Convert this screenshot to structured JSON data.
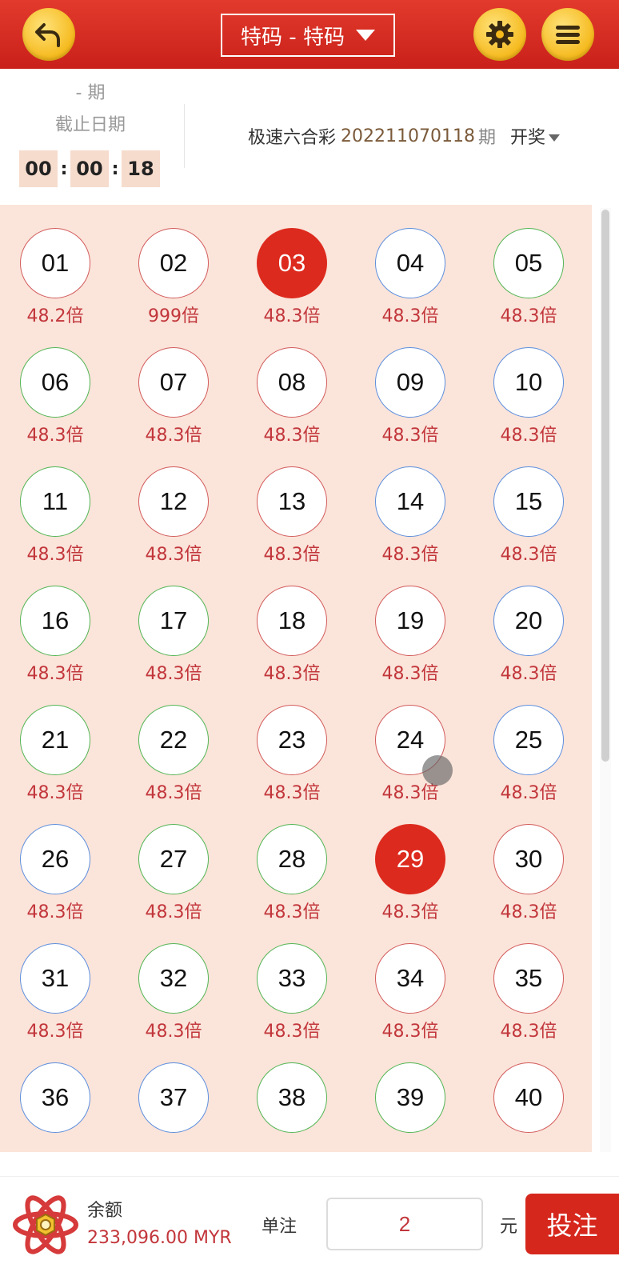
{
  "header": {
    "title": "特码 - 特码",
    "back_icon": "back-arrow-icon",
    "settings_icon": "gear-icon",
    "menu_icon": "menu-icon"
  },
  "info": {
    "period": "- 期",
    "cutoff_label": "截止日期",
    "countdown": {
      "hours": "00",
      "minutes": "00",
      "seconds": "18"
    },
    "lottery_name": "极速六合彩",
    "issue_number": "202211070118",
    "issue_suffix": "期",
    "draw_label": "开奖"
  },
  "balls": [
    {
      "num": "01",
      "odds": "48.2倍",
      "color": "red"
    },
    {
      "num": "02",
      "odds": "999倍",
      "color": "red"
    },
    {
      "num": "03",
      "odds": "48.3倍",
      "color": "red",
      "selected": true
    },
    {
      "num": "04",
      "odds": "48.3倍",
      "color": "blue"
    },
    {
      "num": "05",
      "odds": "48.3倍",
      "color": "green"
    },
    {
      "num": "06",
      "odds": "48.3倍",
      "color": "green"
    },
    {
      "num": "07",
      "odds": "48.3倍",
      "color": "red"
    },
    {
      "num": "08",
      "odds": "48.3倍",
      "color": "red"
    },
    {
      "num": "09",
      "odds": "48.3倍",
      "color": "blue"
    },
    {
      "num": "10",
      "odds": "48.3倍",
      "color": "blue"
    },
    {
      "num": "11",
      "odds": "48.3倍",
      "color": "green"
    },
    {
      "num": "12",
      "odds": "48.3倍",
      "color": "red"
    },
    {
      "num": "13",
      "odds": "48.3倍",
      "color": "red"
    },
    {
      "num": "14",
      "odds": "48.3倍",
      "color": "blue"
    },
    {
      "num": "15",
      "odds": "48.3倍",
      "color": "blue"
    },
    {
      "num": "16",
      "odds": "48.3倍",
      "color": "green"
    },
    {
      "num": "17",
      "odds": "48.3倍",
      "color": "green"
    },
    {
      "num": "18",
      "odds": "48.3倍",
      "color": "red"
    },
    {
      "num": "19",
      "odds": "48.3倍",
      "color": "red"
    },
    {
      "num": "20",
      "odds": "48.3倍",
      "color": "blue"
    },
    {
      "num": "21",
      "odds": "48.3倍",
      "color": "green"
    },
    {
      "num": "22",
      "odds": "48.3倍",
      "color": "green"
    },
    {
      "num": "23",
      "odds": "48.3倍",
      "color": "red"
    },
    {
      "num": "24",
      "odds": "48.3倍",
      "color": "red"
    },
    {
      "num": "25",
      "odds": "48.3倍",
      "color": "blue"
    },
    {
      "num": "26",
      "odds": "48.3倍",
      "color": "blue"
    },
    {
      "num": "27",
      "odds": "48.3倍",
      "color": "green"
    },
    {
      "num": "28",
      "odds": "48.3倍",
      "color": "green"
    },
    {
      "num": "29",
      "odds": "48.3倍",
      "color": "red",
      "selected": true
    },
    {
      "num": "30",
      "odds": "48.3倍",
      "color": "red"
    },
    {
      "num": "31",
      "odds": "48.3倍",
      "color": "blue"
    },
    {
      "num": "32",
      "odds": "48.3倍",
      "color": "green"
    },
    {
      "num": "33",
      "odds": "48.3倍",
      "color": "green"
    },
    {
      "num": "34",
      "odds": "48.3倍",
      "color": "red"
    },
    {
      "num": "35",
      "odds": "48.3倍",
      "color": "red"
    },
    {
      "num": "36",
      "odds": "",
      "color": "blue"
    },
    {
      "num": "37",
      "odds": "",
      "color": "blue"
    },
    {
      "num": "38",
      "odds": "",
      "color": "green"
    },
    {
      "num": "39",
      "odds": "",
      "color": "green"
    },
    {
      "num": "40",
      "odds": "",
      "color": "red"
    }
  ],
  "footer": {
    "balance_label": "余额",
    "balance_value": "233,096.00 MYR",
    "unit_label": "单注",
    "stake_value": "2",
    "currency_label": "元",
    "bet_button": "投注",
    "logo_icon": "atom-logo-icon"
  },
  "colors": {
    "header": "#d6271d",
    "selected": "#dd2a1e",
    "grid_bg": "#fbe4da",
    "red_ring": "#d25b5b",
    "blue_ring": "#5d8fdd",
    "green_ring": "#53b554",
    "odds_text": "#c2363b"
  }
}
